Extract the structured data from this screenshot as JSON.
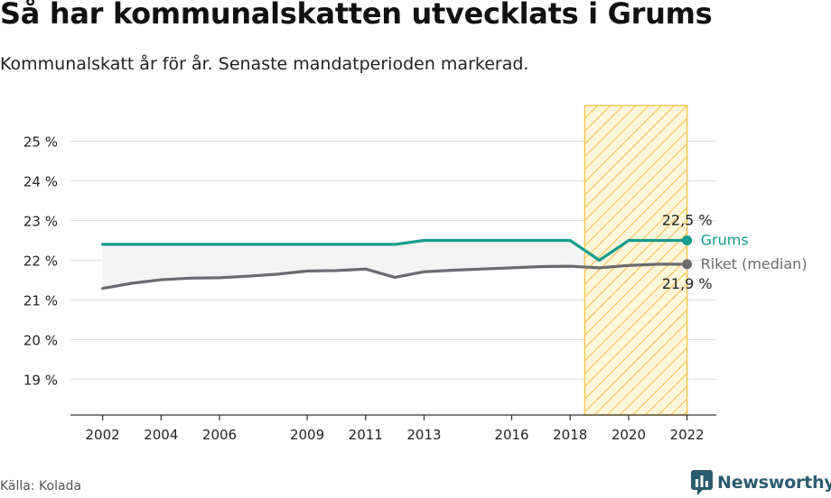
{
  "title": "Så har kommunalskatten utvecklats i Grums",
  "subtitle": "Kommunalskatt år för år. Senaste mandatperioden markerad.",
  "source": "Källa: Kolada",
  "brand": "Newsworthy",
  "colors": {
    "grums": "#139c8e",
    "riket": "#6b6a70",
    "highlight_fill": "#fde7a8",
    "highlight_stroke": "#f6c453",
    "grid": "#dddddd",
    "band": "#f3f3f3",
    "brand": "#2b5b6e"
  },
  "chart_data": {
    "type": "line",
    "x_ticks": [
      2002,
      2004,
      2006,
      2009,
      2011,
      2013,
      2016,
      2018,
      2020,
      2022
    ],
    "y_ticks": [
      19,
      20,
      21,
      22,
      23,
      24,
      25
    ],
    "y_tick_labels": [
      "19 %",
      "20 %",
      "21 %",
      "22 %",
      "23 %",
      "24 %",
      "25 %"
    ],
    "xlim": [
      2000.9,
      2023
    ],
    "ylim": [
      18.1,
      25.9
    ],
    "highlight_period": [
      2018.5,
      2022
    ],
    "series": [
      {
        "name": "Grums",
        "color": "#139c8e",
        "end_label": "22,5 %",
        "x": [
          2002,
          2003,
          2004,
          2005,
          2006,
          2007,
          2008,
          2009,
          2010,
          2011,
          2012,
          2013,
          2014,
          2015,
          2016,
          2017,
          2018,
          2019,
          2020,
          2021,
          2022
        ],
        "values": [
          22.4,
          22.4,
          22.4,
          22.4,
          22.4,
          22.4,
          22.4,
          22.4,
          22.4,
          22.4,
          22.4,
          22.5,
          22.5,
          22.5,
          22.5,
          22.5,
          22.5,
          22.0,
          22.5,
          22.5,
          22.5
        ]
      },
      {
        "name": "Riket (median)",
        "color": "#6b6a70",
        "end_label": "21,9 %",
        "x": [
          2002,
          2003,
          2004,
          2005,
          2006,
          2007,
          2008,
          2009,
          2010,
          2011,
          2012,
          2013,
          2014,
          2015,
          2016,
          2017,
          2018,
          2019,
          2020,
          2021,
          2022
        ],
        "values": [
          21.29,
          21.42,
          21.51,
          21.55,
          21.56,
          21.6,
          21.65,
          21.73,
          21.74,
          21.78,
          21.57,
          21.71,
          21.75,
          21.78,
          21.81,
          21.84,
          21.85,
          21.81,
          21.87,
          21.9,
          21.9
        ]
      }
    ]
  }
}
